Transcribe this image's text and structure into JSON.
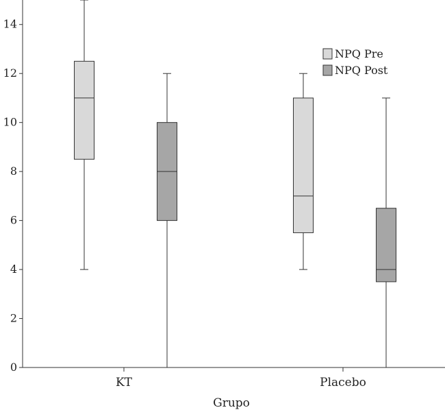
{
  "chart_data": {
    "type": "boxplot",
    "title": "",
    "xlabel": "Grupo",
    "ylabel": "",
    "ylim": [
      0,
      15
    ],
    "yticks": [
      0,
      2,
      4,
      6,
      8,
      10,
      12,
      14
    ],
    "categories": [
      "KT",
      "Placebo"
    ],
    "legend": {
      "position": "top-right"
    },
    "series": [
      {
        "name": "NPQ Pre",
        "color": "#d9d9d9",
        "boxes": [
          {
            "category": "KT",
            "min": 4,
            "q1": 8.5,
            "median": 11,
            "q3": 12.5,
            "max": 15
          },
          {
            "category": "Placebo",
            "min": 4,
            "q1": 5.5,
            "median": 7,
            "q3": 11,
            "max": 12
          }
        ]
      },
      {
        "name": "NPQ Post",
        "color": "#a6a6a6",
        "boxes": [
          {
            "category": "KT",
            "min": 0,
            "q1": 6,
            "median": 8,
            "q3": 10,
            "max": 12
          },
          {
            "category": "Placebo",
            "min": 0,
            "q1": 3.5,
            "median": 4,
            "q3": 6.5,
            "max": 11
          }
        ]
      }
    ]
  }
}
